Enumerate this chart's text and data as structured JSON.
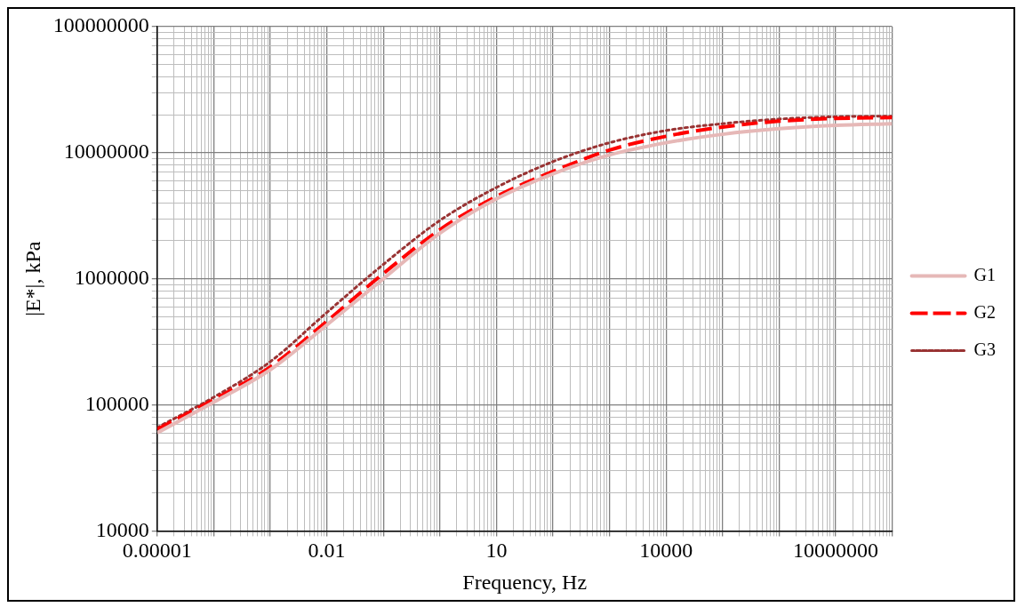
{
  "chart_data": {
    "type": "line",
    "xlabel": "Frequency, Hz",
    "ylabel": "|E*|, kPa",
    "log": "xy",
    "grid": true,
    "legend": "right",
    "marker": "none",
    "xlim": [
      1e-05,
      100000000
    ],
    "xticks": [
      {
        "value": 1e-05,
        "label": "0.00001"
      },
      {
        "value": 0.0001,
        "label": null
      },
      {
        "value": 0.001,
        "label": null
      },
      {
        "value": 0.01,
        "label": "0.01"
      },
      {
        "value": 0.1,
        "label": null
      },
      {
        "value": 1,
        "label": null
      },
      {
        "value": 10,
        "label": "10"
      },
      {
        "value": 100,
        "label": null
      },
      {
        "value": 1000,
        "label": null
      },
      {
        "value": 10000,
        "label": "10000"
      },
      {
        "value": 100000,
        "label": null
      },
      {
        "value": 1000000,
        "label": null
      },
      {
        "value": 10000000,
        "label": "10000000"
      },
      {
        "value": 100000000,
        "label": null
      }
    ],
    "ylim": [
      10000,
      100000000
    ],
    "yticks": [
      10000,
      100000,
      1000000,
      10000000,
      100000000
    ],
    "x": [
      1e-05,
      0.0001,
      0.001,
      0.01,
      0.1,
      1,
      10,
      100,
      1000,
      10000,
      100000,
      1000000,
      10000000,
      100000000
    ],
    "series": [
      {
        "name": "G1",
        "color": "#e6b8b7",
        "line_style": "solid",
        "values": [
          60000,
          105000,
          190000,
          430000,
          1000000,
          2300000,
          4300000,
          6800000,
          9600000,
          12000000,
          14000000,
          15500000,
          16500000,
          17000000
        ]
      },
      {
        "name": "G2",
        "color": "#ff0000",
        "line_style": "dashed",
        "values": [
          64000,
          110000,
          200000,
          460000,
          1100000,
          2450000,
          4500000,
          7100000,
          10500000,
          13500000,
          16000000,
          17800000,
          18700000,
          19000000
        ]
      },
      {
        "name": "G3",
        "color": "#993333",
        "line_style": "dotted",
        "values": [
          66000,
          115000,
          220000,
          540000,
          1300000,
          2900000,
          5300000,
          8500000,
          12000000,
          15000000,
          17000000,
          18500000,
          19300000,
          19500000
        ]
      }
    ]
  }
}
